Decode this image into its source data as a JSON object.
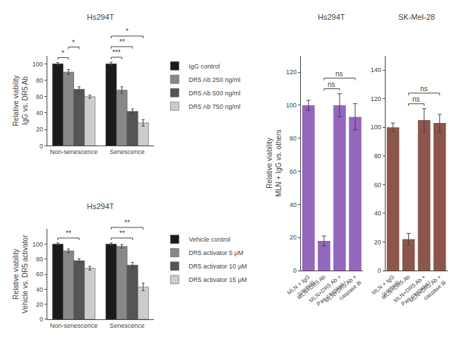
{
  "chart_data": [
    {
      "type": "bar",
      "title": "Hs294T",
      "categories": [
        "Non-senescence",
        "Senescence"
      ],
      "series": [
        {
          "name": "IgG control",
          "color": "#1a1a1a",
          "values": [
            100,
            100
          ],
          "errors": [
            1.5,
            2
          ]
        },
        {
          "name": "DR5 Ab 250 ng/ml",
          "color": "#888888",
          "values": [
            90,
            68
          ],
          "errors": [
            3,
            4
          ]
        },
        {
          "name": "DR5 Ab 500 ng/ml",
          "color": "#555555",
          "values": [
            69,
            42
          ],
          "errors": [
            3,
            3
          ]
        },
        {
          "name": "DR5 Ab 750 ng/ml",
          "color": "#cccccc",
          "values": [
            60,
            28
          ],
          "errors": [
            2,
            4
          ]
        }
      ],
      "ylabel": "Relative viability\nIgG vs. DR5 Ab",
      "ylim": [
        0,
        110
      ],
      "yticks": [
        0,
        20,
        40,
        60,
        80,
        100
      ],
      "grid": false,
      "legend": "right",
      "annotations": [
        {
          "text": "*",
          "category": "Non-senescence",
          "from": "IgG control",
          "to": "DR5 Ab 250 ng/ml"
        },
        {
          "text": "*",
          "category": "Non-senescence",
          "from": "DR5 Ab 250 ng/ml",
          "to": "DR5 Ab 500 ng/ml"
        },
        {
          "text": "***",
          "category": "Senescence",
          "from": "IgG control",
          "to": "DR5 Ab 250 ng/ml"
        },
        {
          "text": "**",
          "category": "Senescence",
          "from": "IgG control",
          "to": "DR5 Ab 500 ng/ml"
        },
        {
          "text": "*",
          "category": "Senescence",
          "from": "IgG control",
          "to": "DR5 Ab 750 ng/ml"
        }
      ]
    },
    {
      "type": "bar",
      "title": "Hs294T",
      "categories": [
        "MLN + IgG\n(control)",
        "MLN+DR5 Ab",
        "MLN+DR5 Ab +\nPan-caspase i",
        "MLN+DR5 Ab +\ncaspase 8i"
      ],
      "values": [
        100,
        18,
        100,
        93
      ],
      "errors": [
        3,
        3,
        7,
        8
      ],
      "ylabel": "Relative viability\nMLN + IgG vs. others",
      "ylim": [
        0,
        130
      ],
      "yticks": [
        0,
        20,
        40,
        60,
        80,
        100,
        120
      ],
      "grid": false,
      "annotations": [
        {
          "text": "ns",
          "from": "MLN+DR5 Ab",
          "to": "MLN+DR5 Ab +\nPan-caspase i"
        },
        {
          "text": "ns",
          "from": "MLN+DR5 Ab",
          "to": "MLN+DR5 Ab +\ncaspase 8i"
        }
      ]
    },
    {
      "type": "bar",
      "title": "SK-Mel-28",
      "categories": [
        "MLN + IgG\n(control)",
        "MLN+DR5 Ab",
        "MLN+DR5 Ab +\nPan-caspase i",
        "MLN+DR5 Ab +\ncaspase 8i"
      ],
      "values": [
        100,
        22,
        105,
        103
      ],
      "errors": [
        3,
        4,
        8,
        6
      ],
      "ylim": [
        0,
        150
      ],
      "yticks": [
        0,
        20,
        40,
        60,
        80,
        100,
        120,
        140
      ],
      "grid": false,
      "annotations": [
        {
          "text": "ns",
          "from": "MLN+DR5 Ab",
          "to": "MLN+DR5 Ab +\nPan-caspase i"
        },
        {
          "text": "ns",
          "from": "MLN+DR5 Ab",
          "to": "MLN+DR5 Ab +\ncaspase 8i"
        }
      ]
    },
    {
      "type": "bar",
      "title": "Hs294T",
      "categories": [
        "Non-senescence",
        "Senescence"
      ],
      "series": [
        {
          "name": "Vehicle control",
          "color": "#1a1a1a",
          "values": [
            100,
            100
          ],
          "errors": [
            1.5,
            1.5
          ]
        },
        {
          "name": "DR5 activator 5 μM",
          "color": "#888888",
          "values": [
            91,
            97
          ],
          "errors": [
            2.5,
            2.5
          ]
        },
        {
          "name": "DR5 activator 10 μM",
          "color": "#555555",
          "values": [
            78,
            72
          ],
          "errors": [
            2.5,
            3.5
          ]
        },
        {
          "name": "DR5 activator 15 μM",
          "color": "#cccccc",
          "values": [
            68,
            43
          ],
          "errors": [
            2.5,
            5
          ]
        }
      ],
      "ylabel": "Relative viability\nVehicle vs. DR5 activator",
      "ylim": [
        0,
        120
      ],
      "yticks": [
        0,
        20,
        40,
        60,
        80,
        100
      ],
      "grid": false,
      "legend": "right",
      "annotations": [
        {
          "text": "**",
          "category": "Non-senescence",
          "from": "Vehicle control",
          "to": "DR5 activator 10 μM"
        },
        {
          "text": "**",
          "category": "Senescence",
          "from": "Vehicle control",
          "to": "DR5 activator 10 μM"
        },
        {
          "text": "**",
          "category": "Senescence",
          "from": "Vehicle control",
          "to": "DR5 activator 15 μM"
        }
      ]
    }
  ]
}
